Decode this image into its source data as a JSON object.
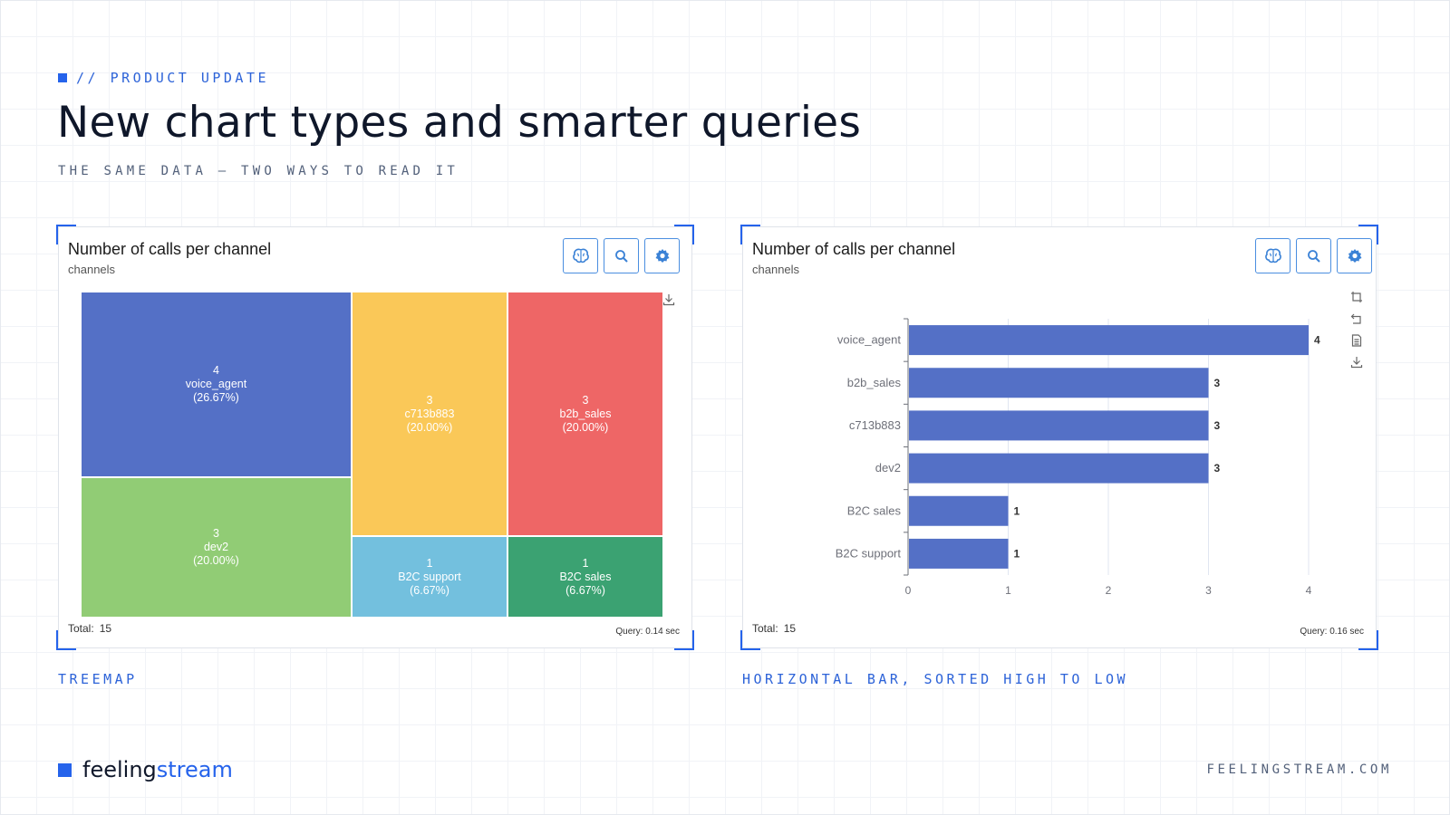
{
  "header": {
    "eyebrow": "// PRODUCT UPDATE",
    "title": "New chart types and smarter queries",
    "subtitle": "THE SAME DATA — TWO WAYS TO READ IT"
  },
  "colors": {
    "accent": "#2563eb",
    "treemap_palette": [
      "#5470c6",
      "#fac858",
      "#ee6666",
      "#91cc75",
      "#73c0de",
      "#3ba272"
    ],
    "bar_color": "#5470c6"
  },
  "left_card": {
    "title": "Number of calls per channel",
    "subtitle": "channels",
    "toolbar": [
      "brain-icon",
      "search-icon",
      "gear-icon"
    ],
    "total_label": "Total:",
    "total_value": "15",
    "query": "Query: 0.14 sec",
    "caption": "TREEMAP"
  },
  "right_card": {
    "title": "Number of calls per channel",
    "subtitle": "channels",
    "toolbar": [
      "brain-icon",
      "search-icon",
      "gear-icon"
    ],
    "side_tools": [
      "restore-icon",
      "undo-icon",
      "data-view-icon",
      "download-icon"
    ],
    "total_label": "Total:",
    "total_value": "15",
    "query": "Query: 0.16 sec",
    "caption": "HORIZONTAL BAR, SORTED HIGH TO LOW"
  },
  "chart_data": [
    {
      "type": "treemap",
      "items": [
        {
          "name": "voice_agent",
          "value": 4,
          "pct": "(26.67%)"
        },
        {
          "name": "c713b883",
          "value": 3,
          "pct": "(20.00%)"
        },
        {
          "name": "b2b_sales",
          "value": 3,
          "pct": "(20.00%)"
        },
        {
          "name": "dev2",
          "value": 3,
          "pct": "(20.00%)"
        },
        {
          "name": "B2C support",
          "value": 1,
          "pct": "(6.67%)"
        },
        {
          "name": "B2C sales",
          "value": 1,
          "pct": "(6.67%)"
        }
      ]
    },
    {
      "type": "bar",
      "orientation": "horizontal",
      "categories": [
        "voice_agent",
        "b2b_sales",
        "c713b883",
        "dev2",
        "B2C sales",
        "B2C support"
      ],
      "values": [
        4,
        3,
        3,
        3,
        1,
        1
      ],
      "xlim": [
        0,
        4
      ],
      "xticks": [
        "0",
        "1",
        "2",
        "3",
        "4"
      ],
      "grid": true
    }
  ],
  "footer": {
    "brand_part1": "feeling",
    "brand_part2": "stream",
    "site": "FEELINGSTREAM.COM"
  }
}
